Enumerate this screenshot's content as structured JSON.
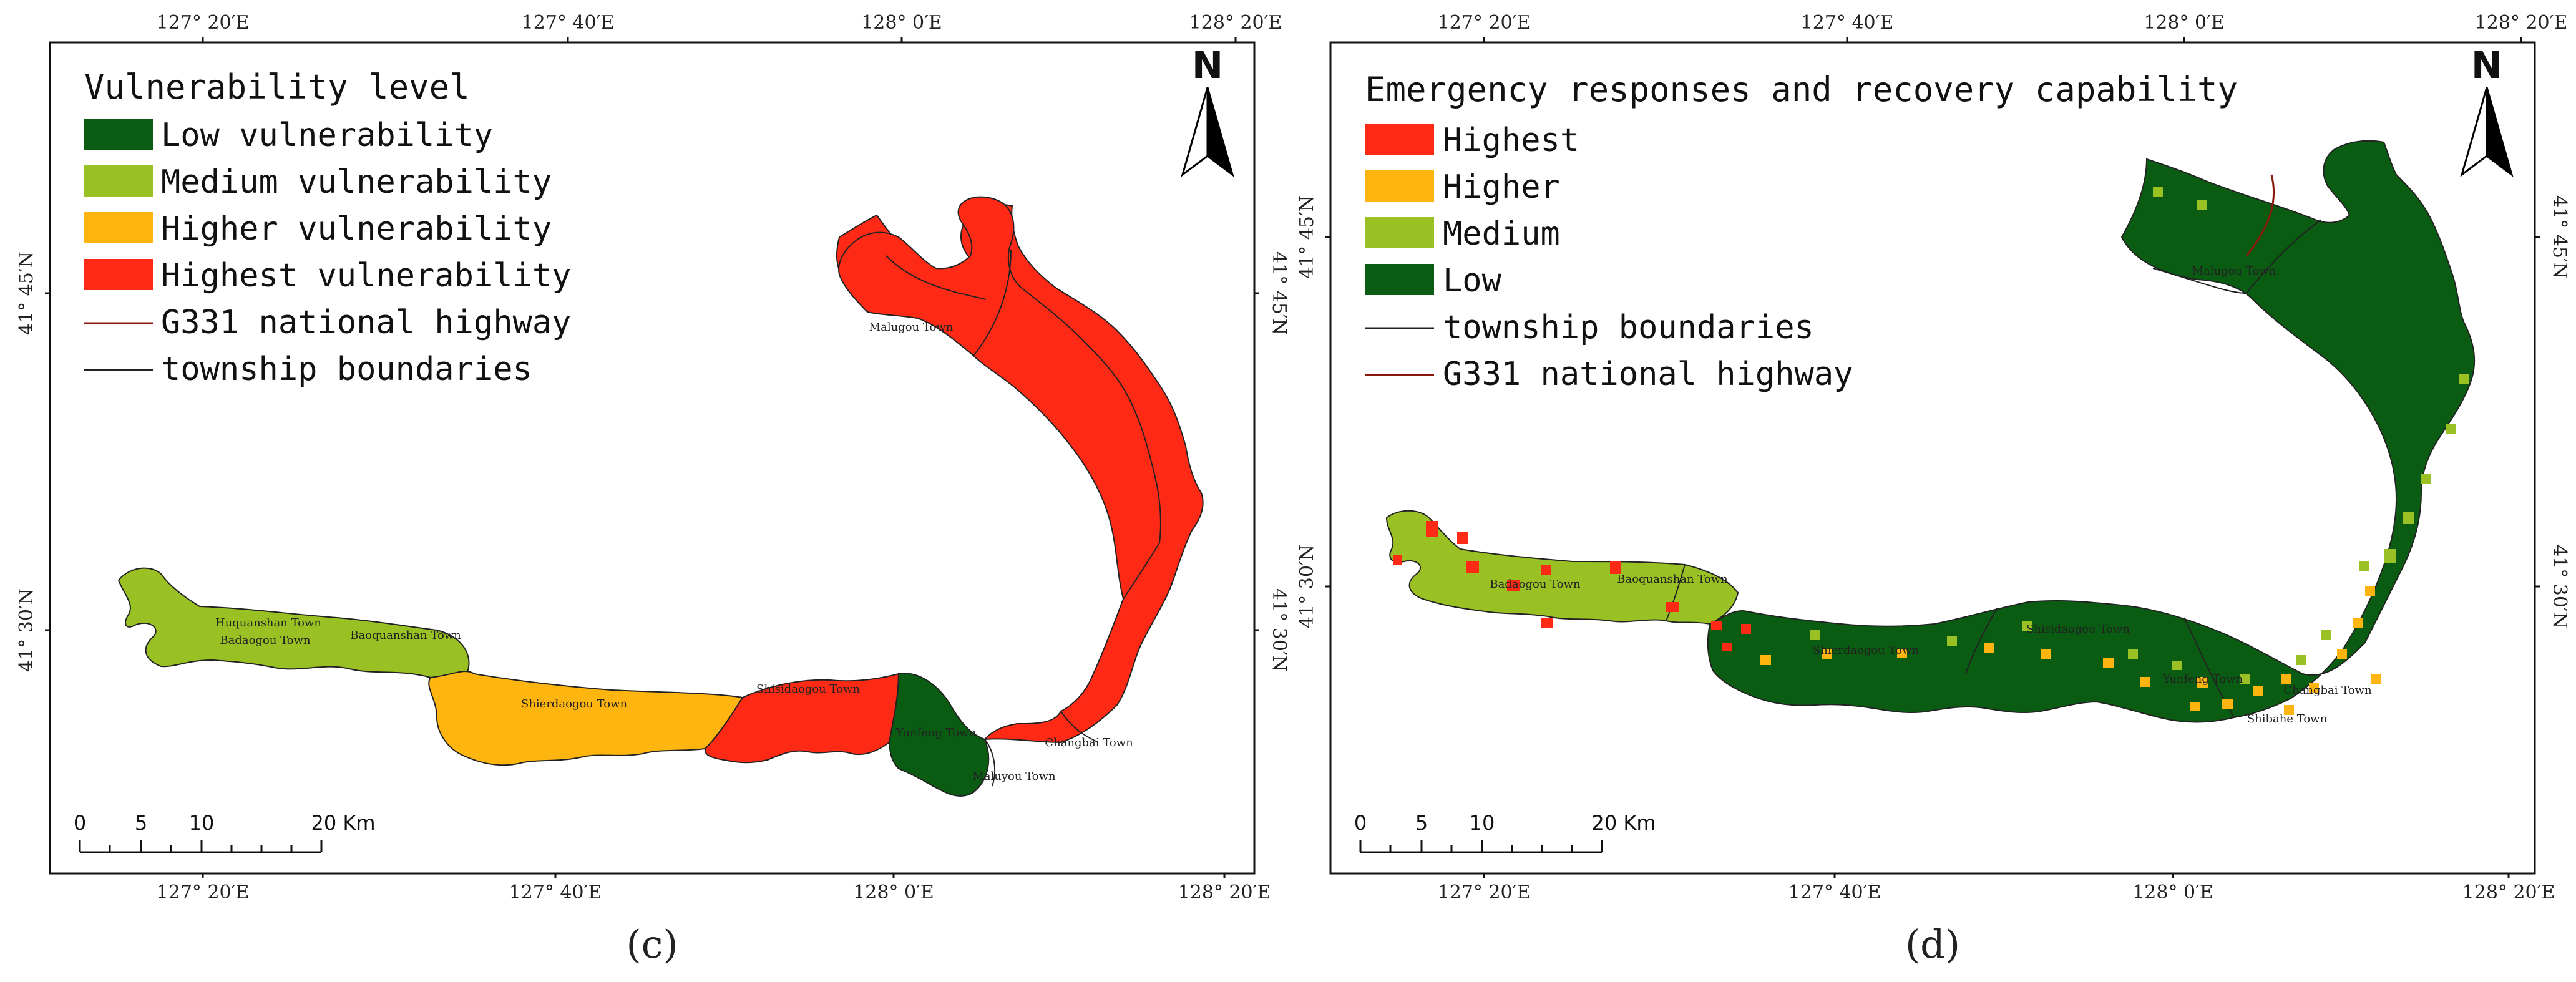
{
  "colors": {
    "low": "#0a5c12",
    "medium": "#99c123",
    "higher": "#ffb50f",
    "highest": "#ff2a16",
    "highway": "#8b1a0c",
    "boundary": "#222222",
    "frame": "#111111"
  },
  "north_arrow_label": "N",
  "scale_bar": {
    "tick_labels": [
      "0",
      "5",
      "10",
      "20 Km"
    ]
  },
  "panels": [
    {
      "caption": "(c)",
      "lon_labels": [
        "127° 20′E",
        "127° 40′E",
        "128° 0′E",
        "128° 20′E"
      ],
      "lat_labels": [
        "41° 45′N",
        "41° 30′N"
      ],
      "legend": {
        "title": "Vulnerability level",
        "items": [
          {
            "label": "Low vulnerability",
            "swatch": "low"
          },
          {
            "label": "Medium vulnerability",
            "swatch": "medium"
          },
          {
            "label": "Higher vulnerability",
            "swatch": "higher"
          },
          {
            "label": "Highest vulnerability",
            "swatch": "highest"
          },
          {
            "label": "G331 national highway",
            "swatch": "highway-line"
          },
          {
            "label": "township boundaries",
            "swatch": "boundary-line"
          }
        ]
      },
      "town_labels": [
        "Malugou Town",
        "Baoquanshan Town",
        "Badaogou Town",
        "Shierdaogou Town",
        "Shisidaogou Town",
        "Yunfeng Town",
        "Changbai Town",
        "Maluyou Town",
        "Huquanshan Town"
      ]
    },
    {
      "caption": "(d)",
      "lon_labels": [
        "127° 20′E",
        "127° 40′E",
        "128° 0′E",
        "128° 20′E"
      ],
      "lat_labels": [
        "41° 45′N",
        "41° 30′N"
      ],
      "legend": {
        "title": "Emergency responses and recovery capability",
        "items": [
          {
            "label": "Highest",
            "swatch": "highest"
          },
          {
            "label": "Higher",
            "swatch": "higher"
          },
          {
            "label": "Medium",
            "swatch": "medium"
          },
          {
            "label": "Low",
            "swatch": "low"
          },
          {
            "label": "township boundaries",
            "swatch": "boundary-line"
          },
          {
            "label": "G331 national highway",
            "swatch": "highway-line"
          }
        ]
      },
      "town_labels": [
        "Malugou Town",
        "Baoquanshan Town",
        "Badaogou Town",
        "Shierdaogou Town",
        "Shisidaogou Town",
        "Yunfeng Town",
        "Changbai Town",
        "Shibahe Town"
      ]
    }
  ]
}
